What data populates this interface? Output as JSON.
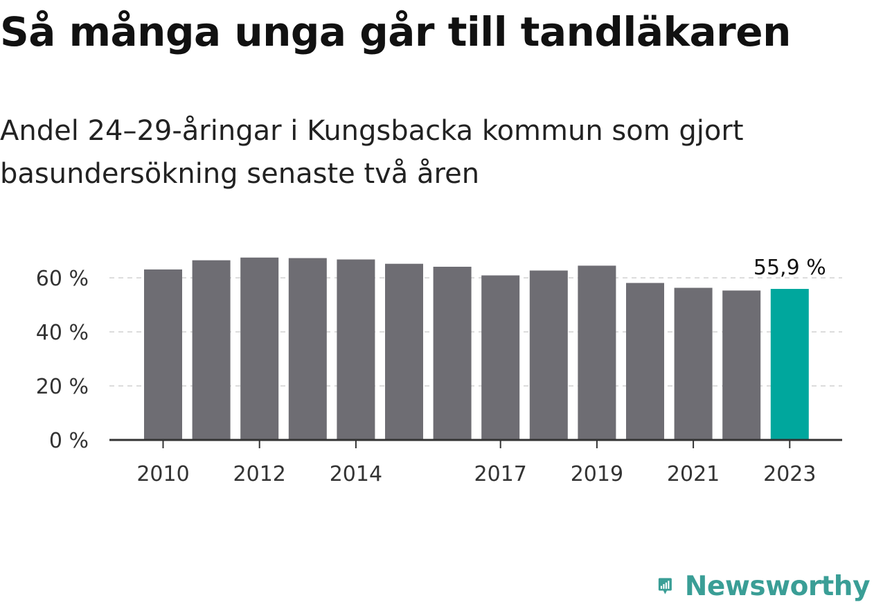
{
  "chart_data": {
    "type": "bar",
    "title": "Så många unga går till tandläkaren",
    "subtitle": "Andel 24–29-åringar i Kungsbacka kommun som gjort basundersökning senaste två åren",
    "categories": [
      "2010",
      "2011",
      "2012",
      "2013",
      "2014",
      "2015",
      "2016",
      "2017",
      "2018",
      "2019",
      "2020",
      "2021",
      "2022",
      "2023"
    ],
    "x_tick_labels": [
      "2010",
      "2012",
      "2014",
      "2017",
      "2019",
      "2021",
      "2023"
    ],
    "values": [
      63.1,
      66.5,
      67.5,
      67.3,
      66.8,
      65.2,
      64.1,
      60.9,
      62.7,
      64.5,
      58.1,
      56.3,
      55.3,
      55.9
    ],
    "highlight_index": 13,
    "highlight_label": "55,9 %",
    "y_ticks": [
      0,
      20,
      40,
      60
    ],
    "y_tick_labels": [
      "0 %",
      "20 %",
      "40 %",
      "60 %"
    ],
    "ylim": [
      0,
      70
    ],
    "xlabel": "",
    "ylabel": "",
    "grid": true,
    "legend": "none",
    "colors": {
      "bar": "#6e6d73",
      "highlight": "#00a79d",
      "grid": "#dcdcdc",
      "axis": "#333333",
      "tick_text": "#333333"
    }
  },
  "brand": {
    "name": "Newsworthy",
    "icon": "newsworthy-logo-icon",
    "color": "#3a9e96"
  }
}
